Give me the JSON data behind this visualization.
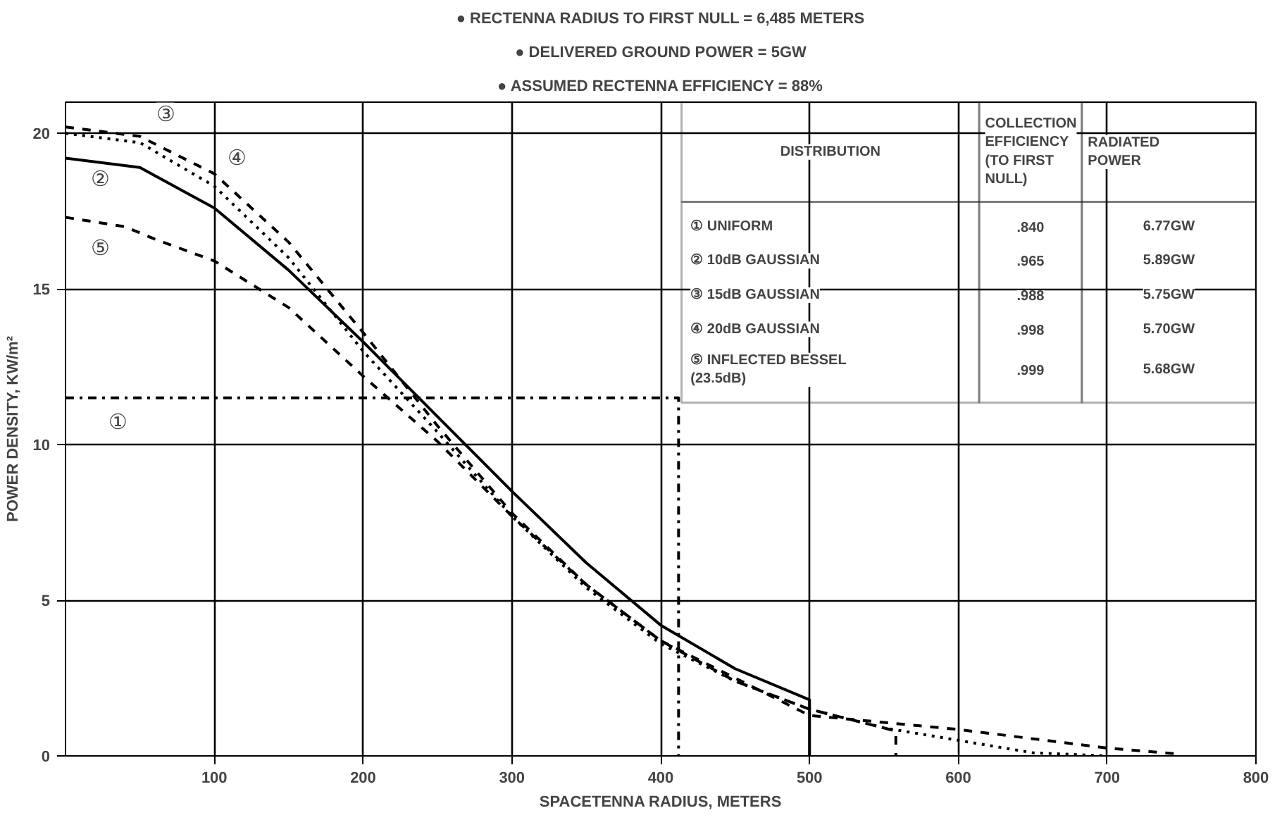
{
  "chart_data": {
    "type": "line",
    "xlabel": "SPACETENNA RADIUS, METERS",
    "ylabel": "POWER DENSITY, KW/m²",
    "xlim": [
      0,
      800
    ],
    "ylim": [
      0,
      21
    ],
    "xticks": [
      100,
      200,
      300,
      400,
      500,
      600,
      700,
      800
    ],
    "yticks": [
      0,
      5,
      10,
      15,
      20
    ],
    "grid": true,
    "series": [
      {
        "color": "#000000",
        "line_style": "dashdot",
        "x": [
          0,
          412,
          412
        ],
        "values": [
          11.5,
          11.5,
          0
        ]
      },
      {
        "color": "#000000",
        "line_style": "solid",
        "x": [
          0,
          50,
          100,
          150,
          200,
          250,
          300,
          350,
          400,
          450,
          500,
          500
        ],
        "values": [
          19.2,
          18.9,
          17.6,
          15.6,
          13.3,
          10.9,
          8.5,
          6.2,
          4.2,
          2.8,
          1.8,
          0
        ]
      },
      {
        "color": "#000000",
        "line_style": "dotted",
        "x": [
          0,
          50,
          100,
          150,
          200,
          250,
          300,
          350,
          400,
          450,
          500,
          550,
          600,
          650,
          700
        ],
        "values": [
          20.0,
          19.7,
          18.3,
          16.0,
          13.0,
          10.4,
          7.7,
          5.4,
          3.6,
          2.4,
          1.5,
          0.9,
          0.5,
          0.1,
          0
        ]
      },
      {
        "color": "#000000",
        "line_style": "dashed",
        "x": [
          0,
          50,
          100,
          150,
          200,
          250,
          300,
          350,
          400,
          450,
          500,
          558,
          558
        ],
        "values": [
          20.2,
          19.9,
          18.7,
          16.5,
          13.6,
          10.6,
          7.8,
          5.5,
          3.7,
          2.4,
          1.5,
          0.8,
          0
        ]
      },
      {
        "color": "#000000",
        "line_style": "dashed",
        "x": [
          0,
          40,
          60,
          100,
          150,
          200,
          250,
          300,
          350,
          400,
          450,
          500,
          600,
          650,
          700,
          750
        ],
        "values": [
          17.3,
          17.0,
          16.6,
          15.9,
          14.4,
          12.2,
          10.1,
          7.7,
          5.5,
          3.7,
          2.5,
          1.3,
          0.85,
          0.55,
          0.25,
          0.05
        ]
      }
    ],
    "annotations": [
      "● RECTENNA RADIUS TO FIRST NULL = 6,485 METERS",
      "● DELIVERED GROUND POWER = 5GW",
      "● ASSUMED RECTENNA EFFICIENCY = 88%",
      "DISTRIBUTION",
      "COLLECTION EFFICIENCY (TO FIRST NULL)",
      "RADIATED POWER",
      "① UNIFORM",
      ".840",
      "6.77GW",
      "② 10dB GAUSSIAN",
      ".965",
      "5.89GW",
      "③ 15dB GAUSSIAN",
      ".988",
      "5.75GW",
      "④ 20dB GAUSSIAN",
      ".998",
      "5.70GW",
      "⑤ INFLECTED BESSEL (23.5dB)",
      ".999",
      "5.68GW",
      {
        "text": "①",
        "x": 35,
        "y": 10.7
      },
      {
        "text": "②",
        "x": 23,
        "y": 18.5
      },
      {
        "text": "③",
        "x": 67,
        "y": 20.6
      },
      {
        "text": "④",
        "x": 115,
        "y": 19.2
      },
      {
        "text": "⑤",
        "x": 23,
        "y": 16.3
      }
    ]
  }
}
